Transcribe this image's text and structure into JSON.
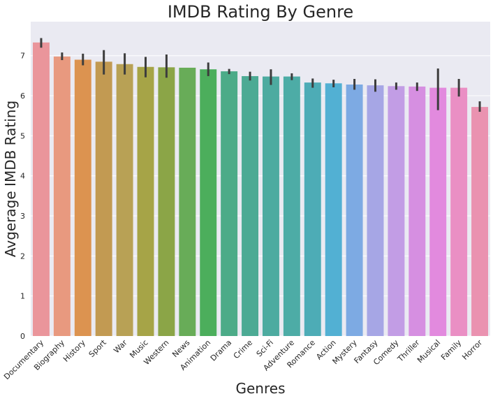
{
  "chart_data": {
    "type": "bar",
    "title": "IMDB Rating By Genre",
    "xlabel": "Genres",
    "ylabel": "Avgerage IMDB Rating",
    "ylim": [
      0,
      7.85
    ],
    "yticks": [
      0,
      1,
      2,
      3,
      4,
      5,
      6,
      7
    ],
    "grid": true,
    "categories": [
      "Documentary",
      "Biography",
      "History",
      "Sport",
      "War",
      "Music",
      "Western",
      "News",
      "Animation",
      "Drama",
      "Crime",
      "Sci-Fi",
      "Adventure",
      "Romance",
      "Action",
      "Mystery",
      "Fantasy",
      "Comedy",
      "Thriller",
      "Musical",
      "Family",
      "Horror"
    ],
    "values": [
      7.33,
      6.98,
      6.9,
      6.85,
      6.79,
      6.72,
      6.71,
      6.7,
      6.66,
      6.61,
      6.49,
      6.48,
      6.48,
      6.33,
      6.31,
      6.28,
      6.26,
      6.24,
      6.23,
      6.2,
      6.2,
      5.72
    ],
    "error_low": [
      7.2,
      6.89,
      6.76,
      6.53,
      6.53,
      6.46,
      6.45,
      null,
      6.49,
      6.54,
      6.38,
      6.27,
      6.39,
      6.2,
      6.21,
      6.15,
      6.1,
      6.15,
      6.12,
      5.64,
      5.98,
      5.6
    ],
    "error_high": [
      7.44,
      7.08,
      7.05,
      7.14,
      7.06,
      6.97,
      7.03,
      null,
      6.83,
      6.67,
      6.6,
      6.66,
      6.56,
      6.43,
      6.4,
      6.42,
      6.41,
      6.33,
      6.33,
      6.68,
      6.42,
      5.86
    ],
    "colors": [
      "#ea959b",
      "#e8997f",
      "#dc9350",
      "#c29a52",
      "#b8a155",
      "#a6a447",
      "#8ba547",
      "#68ac58",
      "#4cae5c",
      "#4cab88",
      "#4caa94",
      "#4daba0",
      "#4daca6",
      "#4dacb6",
      "#52b0d3",
      "#7daae3",
      "#a6a6e5",
      "#c29de5",
      "#d68fe1",
      "#e28ade",
      "#ea8fc4",
      "#ea92b0"
    ]
  }
}
